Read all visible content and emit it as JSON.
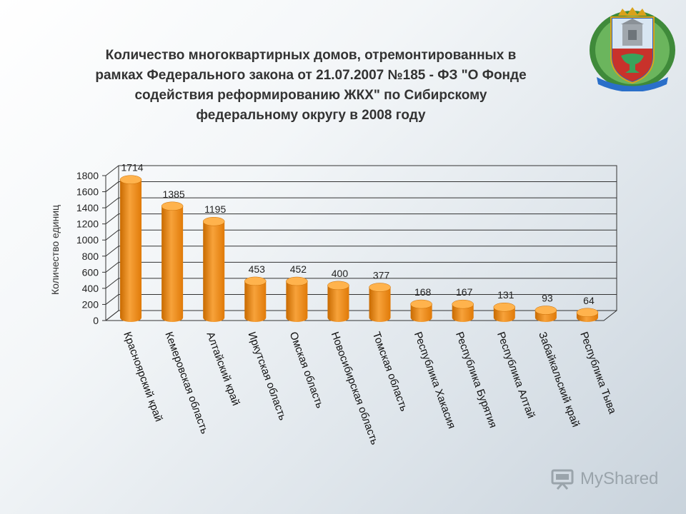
{
  "title_lines": [
    "Количество многоквартирных домов, отремонтированных в",
    "рамках Федерального закона от 21.07.2007 №185 - ФЗ \"О Фонде",
    "содействия реформированию ЖКХ\"  по Сибирскому",
    "федеральному округу в 2008 году"
  ],
  "watermark": "MyShared",
  "colors": {
    "bar": "#F28C0F",
    "bar_dark": "#C86A00",
    "bar_light": "#FFB34D"
  },
  "chart_data": {
    "type": "bar",
    "title": "Количество многоквартирных домов, отремонтированных в рамках Федерального закона от 21.07.2007 №185 - ФЗ \"О Фонде содействия реформированию ЖКХ\"  по Сибирскому федеральному округу в 2008 году",
    "ylabel": "Количество единиц",
    "xlabel": "",
    "ylim": [
      0,
      1800
    ],
    "yticks": [
      "0",
      "200",
      "400",
      "600",
      "800",
      "1000",
      "1200",
      "1400",
      "1600",
      "1800"
    ],
    "grid": true,
    "categories": [
      "Красноярский край",
      "Кемеровская область",
      "Алтайский край",
      "Иркутская область",
      "Омская область",
      "Новосибирская область",
      "Томская область",
      "Республика Хакасия",
      "Республика Бурятия",
      "Республика Алтай",
      "Забайкальский край",
      "Республика Тыва"
    ],
    "values": [
      1714,
      1385,
      1195,
      453,
      452,
      400,
      377,
      168,
      167,
      131,
      93,
      64
    ],
    "value_labels": [
      "1714",
      "1385",
      "1195",
      "453",
      "452",
      "400",
      "377",
      "168",
      "167",
      "131",
      "93",
      "64"
    ]
  }
}
